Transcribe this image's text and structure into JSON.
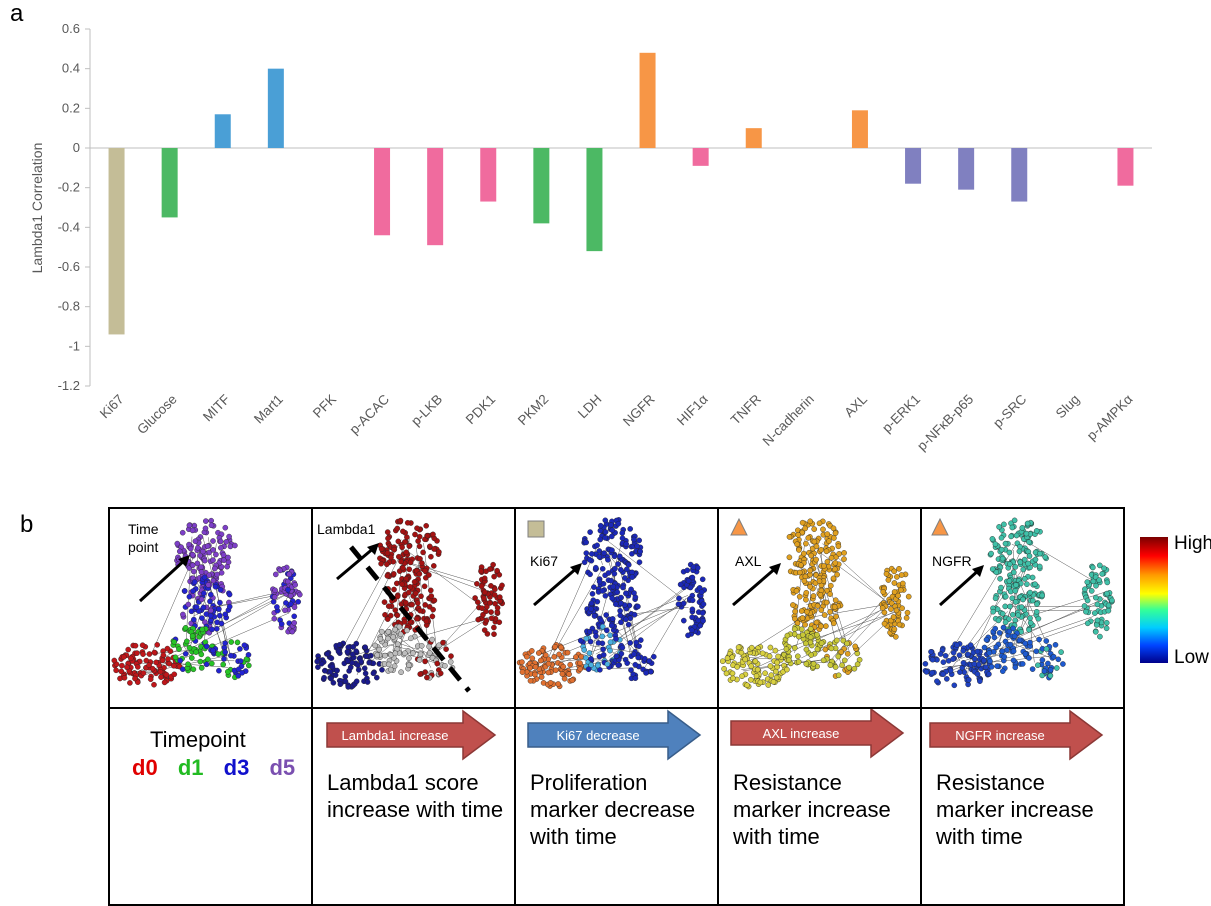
{
  "panel_a": {
    "letter": "a"
  },
  "panel_b": {
    "letter": "b",
    "network_labels": {
      "timepoint_line1": "Time",
      "timepoint_line2": "point",
      "lambda": "Lambda1",
      "ki67": "Ki67",
      "axl": "AXL",
      "ngfr": "NGFR"
    },
    "colorbar": {
      "high": "High",
      "low": "Low"
    },
    "timepoint_legend": {
      "title": "Timepoint",
      "items": [
        {
          "label": "d0",
          "color": "#e00000"
        },
        {
          "label": "d1",
          "color": "#22bb22"
        },
        {
          "label": "d3",
          "color": "#1010cc"
        },
        {
          "label": "d5",
          "color": "#7a4fb0"
        }
      ]
    },
    "arrows": [
      {
        "label": "Lambda1 increase",
        "color": "#c0504d"
      },
      {
        "label": "Ki67 decrease",
        "color": "#4f81bd"
      },
      {
        "label": "AXL increase",
        "color": "#c0504d"
      },
      {
        "label": "NGFR increase",
        "color": "#c0504d"
      }
    ],
    "captions": [
      "Lambda1 score increase with time",
      "Proliferation marker decrease with time",
      "Resistance marker increase with time",
      "Resistance marker increase with time"
    ],
    "marker_colors": {
      "ki67_square": "#c4bd97",
      "triangle": "#f79646"
    }
  },
  "chart_data": {
    "type": "bar",
    "title": "",
    "xlabel": "",
    "ylabel": "Lambda1 Correlation",
    "ylim": [
      -1.2,
      0.6
    ],
    "yticks": [
      0.6,
      0.4,
      0.2,
      0,
      -0.2,
      -0.4,
      -0.6,
      -0.8,
      -1,
      -1.2
    ],
    "grid": false,
    "categories": [
      "Ki67",
      "Glucose",
      "MITF",
      "Mart1",
      "PFK",
      "p-ACAC",
      "p-LKB",
      "PDK1",
      "PKM2",
      "LDH",
      "NGFR",
      "HIF1α",
      "TNFR",
      "N-cadherin",
      "AXL",
      "p-ERK1",
      "p-NFκB-p65",
      "p-SRC",
      "Slug",
      "p-AMPKα"
    ],
    "values": [
      -0.94,
      -0.35,
      0.17,
      0.4,
      0,
      -0.44,
      -0.49,
      -0.27,
      -0.38,
      -0.52,
      0.48,
      -0.09,
      0.1,
      0,
      0.19,
      -0.18,
      -0.21,
      -0.27,
      0,
      -0.19
    ],
    "colors": [
      "#c4bd97",
      "#4cb964",
      "#4a9fd6",
      "#4a9fd6",
      "#f07fa8",
      "#f06b9e",
      "#f06b9e",
      "#f06b9e",
      "#4cb964",
      "#4cb964",
      "#f79646",
      "#f06b9e",
      "#f79646",
      "#f79646",
      "#f79646",
      "#8080c0",
      "#8080c0",
      "#8080c0",
      "#8080c0",
      "#f06b9e"
    ]
  }
}
